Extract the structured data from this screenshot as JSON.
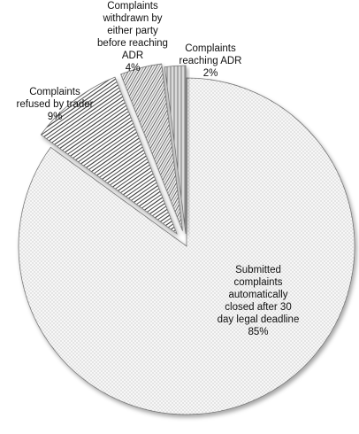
{
  "chart_data": {
    "type": "pie",
    "title": "",
    "legend": "none",
    "slices": [
      {
        "label": "Submitted\ncomplaints\nautomatically\nclosed after 30\nday legal deadline",
        "value": 85,
        "value_label": "85%",
        "pattern": "dots",
        "color": "#f4f4f4"
      },
      {
        "label": "Complaints\nrefused by trader",
        "value": 9,
        "value_label": "9%",
        "pattern": "diagonal-lines",
        "color": "#ededed"
      },
      {
        "label": "Complaints\nwithdrawn by\neither party\nbefore reaching\nADR",
        "value": 4,
        "value_label": "4%",
        "pattern": "diagonal-lines",
        "color": "#e6e6e6"
      },
      {
        "label": "Complaints\nreaching ADR",
        "value": 2,
        "value_label": "2%",
        "pattern": "vertical-lines",
        "color": "#e0e0e0"
      }
    ]
  }
}
